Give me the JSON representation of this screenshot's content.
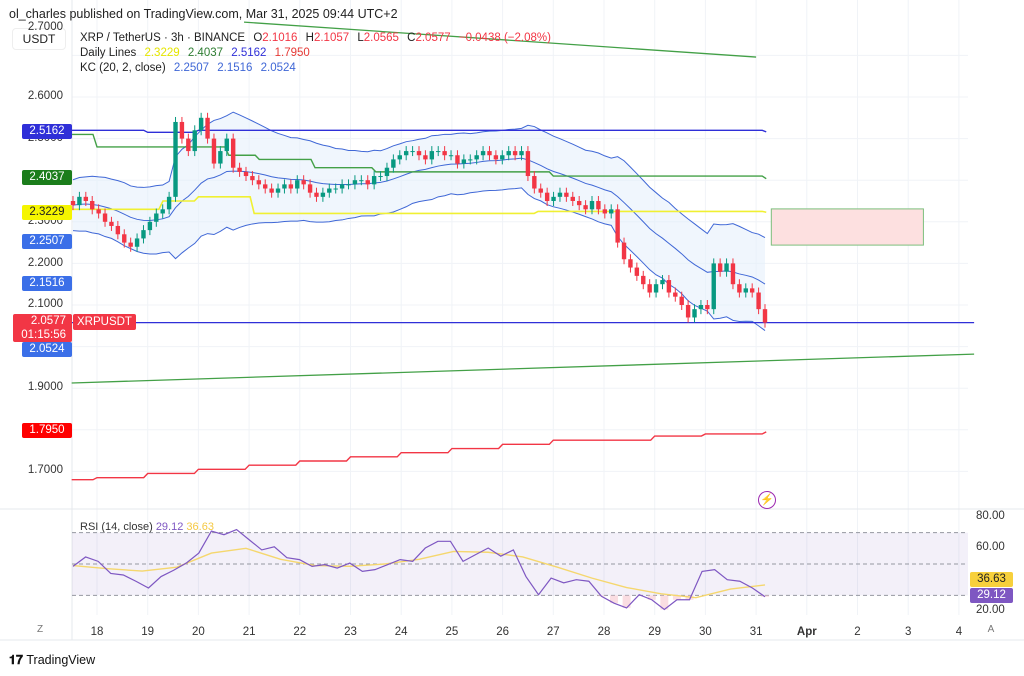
{
  "header": {
    "published": "ol_charles published on TradingView.com, Mar 31, 2025 09:44 UTC+2",
    "currency": "USDT"
  },
  "legend": {
    "symbol": "XRP / TetherUS · 3h · BINANCE",
    "o_label": "O",
    "o": "2.1016",
    "h_label": "H",
    "h": "2.1057",
    "l_label": "L",
    "l": "2.0565",
    "c_label": "C",
    "c": "2.0577",
    "change": "−0.0438 (−2.08%)",
    "daily_lines_label": "Daily Lines",
    "daily_lines": [
      "2.3229",
      "2.4037",
      "2.5162",
      "1.7950"
    ],
    "kc_label": "KC (20, 2, close)",
    "kc": [
      "2.2507",
      "2.1516",
      "2.0524"
    ]
  },
  "colors": {
    "up": "#089981",
    "down": "#f23645",
    "kc": "#3f67d6",
    "yellow": "#f0f032",
    "green": "#43a047",
    "blue": "#2f2fd8",
    "red": "#f23645",
    "rsi": "#7e57c2",
    "rsi_ma": "#f5d76e"
  },
  "price_axis": [
    "2.7000",
    "2.6000",
    "2.5000",
    "2.3000",
    "2.2000",
    "2.1000",
    "1.9000",
    "1.7000"
  ],
  "price_badges": {
    "daily_blue": "2.5162",
    "daily_green": "2.4037",
    "daily_yellow": "2.3229",
    "kc_upper": "2.2507",
    "kc_basis": "2.1516",
    "last": "2.0577",
    "countdown": "01:15:56",
    "symbol_tag": "XRPUSDT",
    "kc_lower": "2.0524",
    "daily_red": "1.7950"
  },
  "time_axis": [
    "18",
    "19",
    "20",
    "21",
    "22",
    "23",
    "24",
    "25",
    "26",
    "27",
    "28",
    "29",
    "30",
    "31",
    "Apr",
    "2",
    "3",
    "4"
  ],
  "time_buttons": {
    "left": "Z",
    "right": "A"
  },
  "rsi": {
    "label": "RSI (14, close)",
    "value": "29.12",
    "ma_value": "36.63",
    "axis": [
      "80.00",
      "60.00",
      "20.00"
    ]
  },
  "footer": {
    "logo": "TradingView"
  },
  "chart_data": [
    {
      "type": "candlestick",
      "interval": "3h",
      "symbol": "XRPUSDT",
      "ylim": [
        1.65,
        2.75
      ],
      "grid": true,
      "closes": [
        2.34,
        2.36,
        2.35,
        2.33,
        2.32,
        2.3,
        2.29,
        2.27,
        2.25,
        2.24,
        2.26,
        2.28,
        2.3,
        2.32,
        2.33,
        2.36,
        2.54,
        2.5,
        2.47,
        2.52,
        2.55,
        2.5,
        2.44,
        2.47,
        2.5,
        2.43,
        2.42,
        2.41,
        2.4,
        2.39,
        2.38,
        2.37,
        2.38,
        2.39,
        2.38,
        2.4,
        2.39,
        2.37,
        2.36,
        2.37,
        2.38,
        2.38,
        2.39,
        2.39,
        2.4,
        2.4,
        2.39,
        2.41,
        2.41,
        2.43,
        2.45,
        2.46,
        2.47,
        2.47,
        2.46,
        2.45,
        2.47,
        2.47,
        2.46,
        2.46,
        2.44,
        2.45,
        2.45,
        2.46,
        2.47,
        2.46,
        2.45,
        2.46,
        2.47,
        2.46,
        2.47,
        2.41,
        2.38,
        2.37,
        2.35,
        2.36,
        2.37,
        2.36,
        2.35,
        2.34,
        2.33,
        2.35,
        2.33,
        2.32,
        2.33,
        2.25,
        2.21,
        2.19,
        2.17,
        2.15,
        2.13,
        2.15,
        2.16,
        2.13,
        2.12,
        2.1,
        2.07,
        2.09,
        2.1,
        2.09,
        2.2,
        2.18,
        2.2,
        2.15,
        2.13,
        2.14,
        2.13,
        2.09,
        2.0577
      ],
      "daily_lines": {
        "yellow": [
          [
            17.5,
            2.33
          ],
          [
            19.3,
            2.35
          ],
          [
            20.0,
            2.36
          ],
          [
            21.1,
            2.32
          ],
          [
            26.7,
            2.325
          ],
          [
            31.2,
            2.3229
          ]
        ],
        "green": [
          [
            17.5,
            2.51
          ],
          [
            18.0,
            2.48
          ],
          [
            20.6,
            2.46
          ],
          [
            21.2,
            2.45
          ],
          [
            22.3,
            2.43
          ],
          [
            23.5,
            2.42
          ],
          [
            27.0,
            2.41
          ],
          [
            31.2,
            2.4037
          ]
        ],
        "blue": [
          [
            17.5,
            2.52
          ],
          [
            19.0,
            2.515
          ],
          [
            20.0,
            2.52
          ],
          [
            26.0,
            2.52
          ],
          [
            31.2,
            2.5162
          ]
        ],
        "red": [
          [
            17.5,
            1.68
          ],
          [
            18.0,
            1.685
          ],
          [
            19.0,
            1.695
          ],
          [
            20.0,
            1.705
          ],
          [
            21.0,
            1.715
          ],
          [
            22.0,
            1.725
          ],
          [
            23.0,
            1.735
          ],
          [
            24.0,
            1.745
          ],
          [
            25.0,
            1.755
          ],
          [
            26.0,
            1.765
          ],
          [
            27.0,
            1.775
          ],
          [
            29.0,
            1.785
          ],
          [
            30.0,
            1.79
          ],
          [
            31.2,
            1.795
          ]
        ]
      },
      "trendlines": [
        {
          "color": "green",
          "from": [
            20.9,
            2.78
          ],
          "to": [
            31.0,
            2.696
          ]
        },
        {
          "color": "green",
          "from": [
            17.5,
            1.9125
          ],
          "to": [
            35.3,
            1.982
          ]
        },
        {
          "color": "blue",
          "from": [
            17.5,
            2.0577
          ],
          "to": [
            35.3,
            2.0577
          ]
        }
      ],
      "zone": {
        "from_day": 31.3,
        "to_day": 34.3,
        "top": 2.331,
        "bottom": 2.244
      }
    },
    {
      "type": "line",
      "title": "RSI (14, close)",
      "ylim": [
        15,
        85
      ],
      "levels": [
        70,
        50,
        30
      ],
      "series": [
        {
          "name": "RSI",
          "values": [
            48.5,
            54.5,
            51.7,
            44,
            43,
            39,
            34.7,
            42,
            46,
            50.6,
            57,
            71,
            68.7,
            72,
            65.5,
            59,
            61,
            54,
            52.8,
            48.5,
            49.6,
            47.4,
            50.6,
            45.3,
            46.4,
            49.6,
            52.8,
            51.7,
            60.2,
            64.5,
            64.5,
            51.7,
            56,
            60.2,
            55,
            59,
            42,
            30.4,
            41,
            38,
            40,
            39,
            29.4,
            25,
            22,
            30.4,
            27.2,
            21,
            27.2,
            27.2,
            45.3,
            46.4,
            40,
            39,
            34.7,
            29.12
          ]
        },
        {
          "name": "MA",
          "values": [
            49,
            47,
            45.5,
            48,
            57,
            60,
            53,
            49,
            48.5,
            50,
            53,
            58,
            57.5,
            54.5,
            48,
            41,
            35,
            31,
            28.5,
            34,
            36.63
          ]
        }
      ]
    }
  ]
}
